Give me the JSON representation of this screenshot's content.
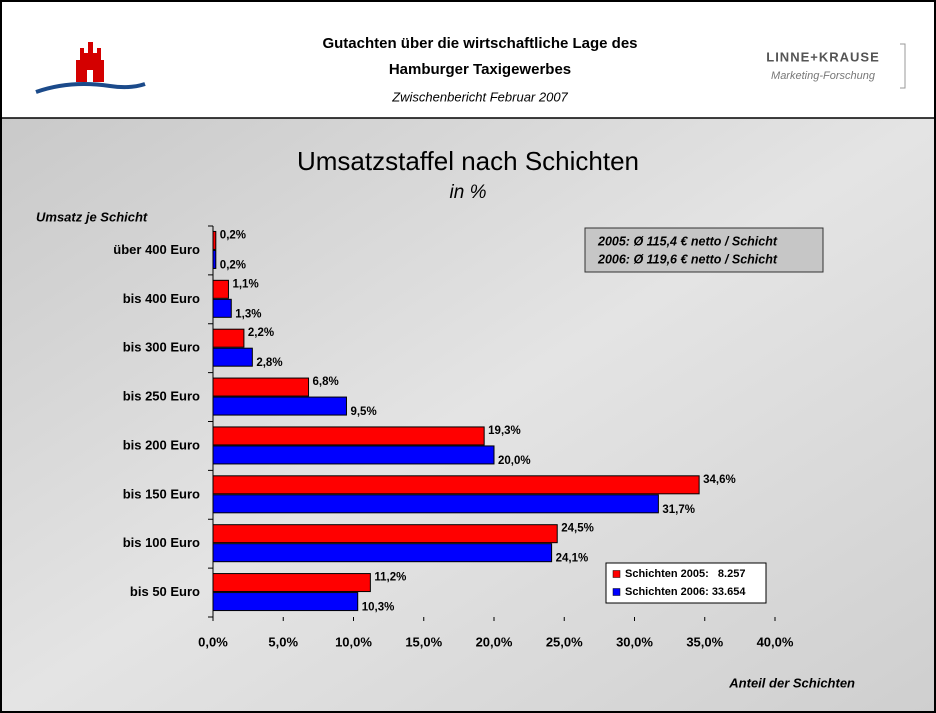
{
  "header": {
    "title_lines": [
      "Gutachten über die wirtschaftliche Lage des",
      "Hamburger Taxigewerbes"
    ],
    "subtitle": "Zwischenbericht Februar 2007",
    "logo_name": "LINNE+KRAUSE",
    "logo_tagline": "Marketing-Forschung"
  },
  "chart_data": {
    "type": "hbar",
    "title": "Umsatzstaffel nach Schichten",
    "subtitle": "in %",
    "y_label": "Umsatz je Schicht",
    "x_label": "Anteil der Schichten",
    "annotations": [
      "2005: Ø 115,4 € netto / Schicht",
      "2006: Ø 119,6 € netto / Schicht"
    ],
    "categories": [
      "über 400 Euro",
      "bis 400 Euro",
      "bis 300 Euro",
      "bis 250 Euro",
      "bis 200 Euro",
      "bis 150 Euro",
      "bis 100 Euro",
      "bis 50 Euro"
    ],
    "series": [
      {
        "name": "Schichten 2005:   8.257",
        "color": "#ff0000",
        "values": [
          0.2,
          1.1,
          2.2,
          6.8,
          19.3,
          34.6,
          24.5,
          11.2
        ],
        "value_labels": [
          "0,2%",
          "1,1%",
          "2,2%",
          "6,8%",
          "19,3%",
          "34,6%",
          "24,5%",
          "11,2%"
        ]
      },
      {
        "name": "Schichten 2006: 33.654",
        "color": "#0000ff",
        "values": [
          0.2,
          1.3,
          2.8,
          9.5,
          20.0,
          31.7,
          24.1,
          10.3
        ],
        "value_labels": [
          "0,2%",
          "1,3%",
          "2,8%",
          "9,5%",
          "20,0%",
          "31,7%",
          "24,1%",
          "10,3%"
        ]
      }
    ],
    "xlim": [
      0,
      40
    ],
    "xticks": [
      {
        "value": 0,
        "label": "0,0%"
      },
      {
        "value": 5,
        "label": "5,0%"
      },
      {
        "value": 10,
        "label": "10,0%"
      },
      {
        "value": 15,
        "label": "15,0%"
      },
      {
        "value": 20,
        "label": "20,0%"
      },
      {
        "value": 25,
        "label": "25,0%"
      },
      {
        "value": 30,
        "label": "30,0%"
      },
      {
        "value": 35,
        "label": "35,0%"
      },
      {
        "value": 40,
        "label": "40,0%"
      }
    ],
    "legend": "lower-right"
  }
}
